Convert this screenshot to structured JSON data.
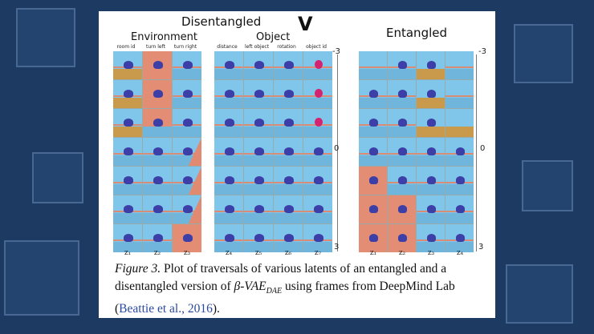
{
  "colors": {
    "paper_bg": "#ffffff",
    "slide_bg": "#1d3a63",
    "citation": "#2a4aa0"
  },
  "figure": {
    "disentangled_title": "Disentangled",
    "entangled_title": "Entangled",
    "environment_group": "Environment",
    "object_group": "Object",
    "arrow_glyph": "V",
    "environment_columns": [
      "room id",
      "turn left",
      "turn right"
    ],
    "object_columns": [
      "distance",
      "left object",
      "rotation",
      "object id"
    ],
    "disentangled_latents_env": [
      "z₁",
      "z₂",
      "z₃"
    ],
    "disentangled_latents_obj": [
      "z₄",
      "z₅",
      "z₆",
      "z₇"
    ],
    "entangled_latents": [
      "z₁",
      "z₂",
      "z₃",
      "z₄"
    ],
    "axis": {
      "top": "-3",
      "mid": "0",
      "bottom": "3"
    }
  },
  "caption": {
    "label": "Figure 3.",
    "text_1": " Plot of traversals of various latents of an entangled and a disentangled version of ",
    "beta_vae": "β-VAE",
    "subscript": "DAE",
    "text_2": " using frames from DeepMind Lab (",
    "citation": "Beattie et al., 2016",
    "text_3": ")."
  }
}
